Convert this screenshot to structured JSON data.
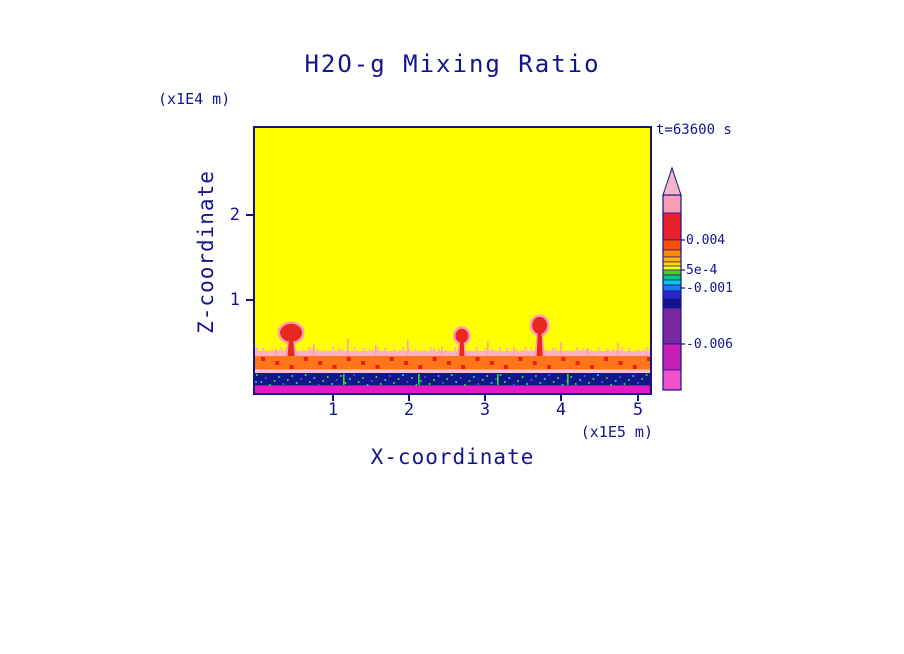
{
  "title": "H2O-g Mixing Ratio",
  "timestamp": "t=63600 s",
  "theme": {
    "line": "#14148C",
    "text": "#14148C",
    "background": "#FFFFFF"
  },
  "axes": {
    "x_label": "X-coordinate",
    "x_units": "(x1E5 m)",
    "x_ticks": [
      "1",
      "2",
      "3",
      "4",
      "5"
    ],
    "y_label": "Z-coordinate",
    "y_units": "(x1E4 m)",
    "y_ticks": [
      "2",
      "1"
    ]
  },
  "colorbar": {
    "labels": [
      "0.004",
      "5e-4",
      "-0.001",
      "-0.006"
    ],
    "arrow_color": "#F5B4C8",
    "tick_offsets": [
      45,
      75,
      93,
      149
    ],
    "segments": [
      {
        "color": "#F59EB6",
        "h": 18
      },
      {
        "color": "#E8202C",
        "h": 27,
        "boundary_value": "0.004"
      },
      {
        "color": "#FF5000",
        "h": 10
      },
      {
        "color": "#FF8C00",
        "h": 7
      },
      {
        "color": "#FFB600",
        "h": 5
      },
      {
        "color": "#FFDC00",
        "h": 4
      },
      {
        "color": "#FFFF00",
        "h": 4,
        "boundary_value": "5e-4"
      },
      {
        "color": "#55C91E",
        "h": 5
      },
      {
        "color": "#00C878",
        "h": 5
      },
      {
        "color": "#00C8DC",
        "h": 5,
        "boundary_value": "-0.001"
      },
      {
        "color": "#1E78F0",
        "h": 6
      },
      {
        "color": "#2828C8",
        "h": 8
      },
      {
        "color": "#14148C",
        "h": 9
      },
      {
        "color": "#7828A0",
        "h": 36,
        "boundary_value": "-0.006"
      },
      {
        "color": "#C81EB4",
        "h": 26
      },
      {
        "color": "#F050C8",
        "h": 20
      }
    ]
  },
  "chart_data": {
    "type": "heatmap",
    "title": "H2O-g Mixing Ratio",
    "xlabel": "X-coordinate",
    "ylabel": "Z-coordinate",
    "x_units_scale": "(x1E5 m)",
    "y_units_scale": "(x1E4 m)",
    "time": "t=63600 s",
    "xlim": [
      0,
      5.2
    ],
    "ylim": [
      0,
      3.1
    ],
    "x_ticks": [
      1,
      2,
      3,
      4,
      5
    ],
    "y_ticks": [
      1,
      2
    ],
    "grid": false,
    "legend_position": "right-colorbar",
    "colorbar_level_labels": [
      "0.004",
      "5e-4",
      "-0.001",
      "-0.006"
    ],
    "background_color": "#FFFF00",
    "background_meaning": "uniform ambient H2O-g mixing ratio over most of the domain",
    "features": {
      "description": "Mostly uniform yellow field with three red convective plumes rising from a near-surface orange/red moist band; below it a thin pink transition line, a dark navy depleted band speckled with green/cyan, and a magenta surface line.",
      "layers": [
        {
          "name": "ragged-pink-interface",
          "z": [
            0.4,
            0.46
          ],
          "color": "#FFB0C4"
        },
        {
          "name": "moist-orange-band",
          "z": [
            0.24,
            0.4
          ],
          "color": "#FF7519"
        },
        {
          "name": "pink-transition-line",
          "z": [
            0.2,
            0.24
          ],
          "color": "#FFC0CB"
        },
        {
          "name": "dry-navy-band",
          "z": [
            0.05,
            0.2
          ],
          "color": "#16168C"
        },
        {
          "name": "magenta-surface-line",
          "z": [
            -0.05,
            0.05
          ],
          "color": "#E816C8"
        }
      ],
      "plumes": [
        {
          "x": 0.45,
          "z_top": 0.78,
          "rx": 11,
          "ry": 9,
          "stem_w": 7
        },
        {
          "x": 2.69,
          "z_top": 0.72,
          "rx": 6.5,
          "ry": 7,
          "stem_w": 5
        },
        {
          "x": 3.71,
          "z_top": 0.86,
          "rx": 7.5,
          "ry": 8.5,
          "stem_w": 6
        }
      ],
      "plume_core_color": "#E8281E",
      "plume_halo_color": "#FF9EB4"
    }
  }
}
